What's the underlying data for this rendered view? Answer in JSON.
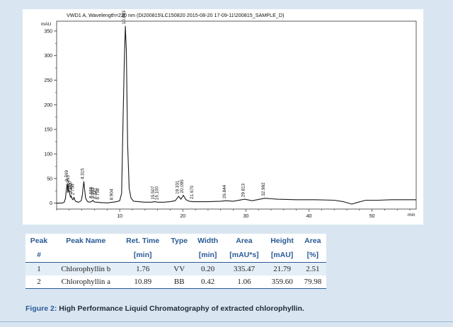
{
  "chart_data": {
    "type": "line",
    "title": "VWD1 A, Wavelength=220 nm (DI200815\\LC150820 2015-08-20 17-09-11\\200815_SAMPLE_D)",
    "ylabel": "mAU",
    "xlabel": "min",
    "xlim": [
      0,
      57
    ],
    "ylim": [
      -12,
      370
    ],
    "x_ticks": [
      10,
      20,
      30,
      40,
      50
    ],
    "y_ticks": [
      0,
      50,
      100,
      150,
      200,
      250,
      300,
      350
    ],
    "series": [
      {
        "x": [
          0.0,
          0.6,
          1.0,
          1.2,
          1.4,
          1.55,
          1.7,
          1.76,
          1.82,
          1.9,
          2.05,
          2.2,
          2.3,
          2.45,
          2.6,
          2.75,
          2.9,
          3.1,
          3.5,
          3.9,
          4.1,
          4.2,
          4.315,
          4.45,
          4.6,
          4.9,
          5.3,
          5.6,
          5.75,
          5.9,
          6.2,
          6.6,
          7.0,
          7.5,
          8.0,
          8.904,
          9.5,
          10.0,
          10.3,
          10.55,
          10.75,
          10.893,
          11.05,
          11.25,
          11.5,
          11.8,
          12.2,
          13.0,
          14.0,
          15.0,
          15.507,
          16.1,
          17.0,
          18.0,
          18.8,
          19.331,
          19.7,
          20.095,
          20.5,
          21.0,
          21.67,
          22.5,
          24.0,
          26.0,
          26.844,
          28.0,
          29.813,
          31.0,
          32.992,
          35.0,
          38.0,
          41.0,
          44.0,
          45.5,
          46.8,
          47.8,
          49.0,
          51.0,
          53.0,
          55.0,
          57.0
        ],
        "y": [
          0,
          0,
          0.5,
          2,
          10,
          28,
          40,
          21.8,
          35,
          28,
          20,
          12,
          15,
          9,
          7,
          12,
          6,
          3,
          2,
          5,
          18,
          32,
          44,
          26,
          10,
          3,
          2,
          4,
          6,
          3,
          2,
          2,
          1,
          1,
          0.5,
          2,
          3,
          5,
          20,
          180,
          300,
          359.6,
          310,
          120,
          30,
          10,
          4,
          3,
          2,
          2,
          3,
          2,
          2,
          3,
          5,
          14,
          8,
          16,
          7,
          4,
          3,
          3,
          3,
          4,
          5,
          4,
          8,
          5,
          10,
          8,
          7,
          7,
          6,
          3,
          -2,
          2,
          6,
          6,
          7,
          7,
          7
        ]
      }
    ],
    "peak_labels": [
      "1.769",
      "1.993",
      "2.300",
      "2.452",
      "2.756",
      "4.315",
      "5.688",
      "5.963",
      "6.341",
      "6.758",
      "8.904",
      "10.893",
      "15.507",
      "16.100",
      "19.331",
      "20.095",
      "21.670",
      "26.844",
      "29.813",
      "32.992"
    ],
    "peak_label_pos": [
      1.769,
      1.993,
      2.3,
      2.452,
      2.756,
      4.315,
      5.688,
      5.963,
      6.341,
      6.758,
      8.904,
      10.893,
      15.507,
      16.1,
      19.331,
      20.095,
      21.67,
      26.844,
      29.813,
      32.992
    ],
    "peak_label_y": [
      40,
      30,
      18,
      15,
      12,
      44,
      6,
      5,
      4,
      3,
      2,
      359.6,
      3,
      2,
      14,
      16,
      4,
      5,
      8,
      10
    ],
    "grid": false,
    "line_color": "#1a1a1a"
  },
  "table": {
    "headers": [
      {
        "line1": "Peak",
        "line2": "#"
      },
      {
        "line1": "Peak Name",
        "line2": ""
      },
      {
        "line1": "Ret. Time",
        "line2": "[min]"
      },
      {
        "line1": "Type",
        "line2": ""
      },
      {
        "line1": "Width",
        "line2": "[min]"
      },
      {
        "line1": "Area",
        "line2": "[mAU*s]"
      },
      {
        "line1": "Height",
        "line2": "[mAU]"
      },
      {
        "line1": "Area",
        "line2": "[%]"
      }
    ],
    "rows": [
      [
        "1",
        "Chlorophyllin b",
        "1.76",
        "VV",
        "0.20",
        "335.47",
        "21.79",
        "2.51"
      ],
      [
        "2",
        "Chlorophyllin a",
        "10.89",
        "BB",
        "0.42",
        "1.06",
        "359.60",
        "79.98"
      ]
    ]
  },
  "caption": {
    "lead": "Figure 2:",
    "text": " High Performance Liquid Chromatography of extracted chlorophyllin."
  },
  "colors": {
    "page_background": "#d9e6f1",
    "header_text": "#2a5a96",
    "row_band": "#e4eef7"
  }
}
